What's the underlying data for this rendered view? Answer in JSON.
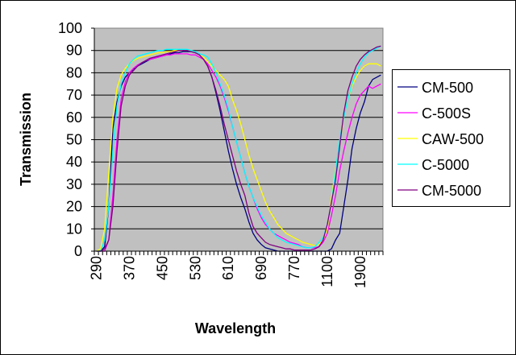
{
  "chart_data": {
    "type": "line",
    "title": "",
    "xlabel": "Wavelength",
    "ylabel": "Transmission",
    "ylim": [
      0,
      100
    ],
    "yticks": [
      0,
      10,
      20,
      30,
      40,
      50,
      60,
      70,
      80,
      90,
      100
    ],
    "grid": true,
    "legend_position": "right",
    "plot_background": "#c0c0c0",
    "categories": [
      290,
      300,
      310,
      320,
      330,
      340,
      350,
      360,
      370,
      380,
      390,
      400,
      410,
      420,
      430,
      440,
      450,
      460,
      470,
      480,
      490,
      500,
      510,
      520,
      530,
      540,
      550,
      560,
      570,
      580,
      590,
      600,
      610,
      620,
      630,
      640,
      650,
      660,
      670,
      680,
      690,
      700,
      710,
      720,
      730,
      740,
      750,
      760,
      770,
      780,
      790,
      800,
      850,
      900,
      950,
      1000,
      1100,
      1200,
      1300,
      1400,
      1500,
      1600,
      1700,
      1800,
      1900,
      2000,
      2100,
      2200,
      2300,
      2400
    ],
    "xtick_labels": [
      "290",
      "370",
      "450",
      "530",
      "610",
      "690",
      "770",
      "1100",
      "1900"
    ],
    "xtick_label_every": 8,
    "series": [
      {
        "name": "CM-500",
        "color": "#000080",
        "values": [
          0,
          0,
          2,
          20,
          55,
          67,
          74,
          78,
          80,
          81.5,
          83,
          84,
          85,
          86,
          86.5,
          87,
          87.5,
          88,
          88.5,
          89,
          89,
          89.5,
          89.5,
          89.5,
          89,
          88,
          86,
          83,
          78,
          71,
          63,
          54,
          45,
          37,
          30,
          24,
          19,
          13,
          8,
          5,
          3,
          1.5,
          1,
          0.5,
          0,
          0,
          0,
          0,
          0,
          0,
          0,
          0,
          0,
          0,
          0,
          0,
          0,
          1,
          5,
          8,
          20,
          32,
          46,
          55,
          62,
          67,
          74,
          77,
          78,
          79
        ]
      },
      {
        "name": "C-500S",
        "color": "#ff00ff",
        "values": [
          0,
          0,
          0,
          5,
          25,
          50,
          68,
          76,
          80,
          82,
          83.5,
          84.5,
          85.5,
          86,
          86.5,
          87,
          87.5,
          88,
          88,
          88.5,
          88.5,
          88.5,
          88.5,
          88,
          88,
          87,
          86,
          84,
          81,
          78,
          74,
          69,
          63,
          56,
          49,
          42,
          35,
          29,
          24,
          19,
          15,
          12,
          10,
          8,
          7,
          6,
          5,
          4,
          3.5,
          3,
          2,
          1.5,
          1.5,
          1.5,
          2,
          4,
          8,
          16,
          25,
          36,
          45,
          53,
          60,
          66,
          70,
          72,
          74,
          73,
          74,
          75
        ]
      },
      {
        "name": "CAW-500",
        "color": "#ffff00",
        "values": [
          0,
          1,
          10,
          35,
          60,
          73,
          79,
          82,
          84,
          85.5,
          86.5,
          87,
          87.5,
          88,
          88.5,
          89,
          89,
          89.5,
          89.5,
          90,
          90,
          90,
          90,
          90,
          89,
          88,
          87,
          85,
          83,
          81,
          79,
          77,
          74,
          68,
          63,
          57,
          50,
          43,
          37,
          32,
          27,
          22,
          18,
          15,
          12,
          10,
          8,
          7,
          6,
          5,
          4,
          3.5,
          3,
          2.5,
          3,
          5,
          10,
          24,
          37,
          48,
          60,
          68,
          74,
          78,
          81,
          83,
          84,
          84,
          84,
          83
        ]
      },
      {
        "name": "C-5000",
        "color": "#00ffff",
        "values": [
          0,
          0,
          5,
          20,
          45,
          65,
          75,
          80,
          84,
          86,
          87.5,
          88,
          88.5,
          89,
          89.5,
          90,
          90,
          90.5,
          90.5,
          90.5,
          90.5,
          90.5,
          90.5,
          90,
          89.5,
          88.5,
          88,
          87,
          84,
          80,
          75,
          70,
          64,
          56,
          49,
          42,
          35,
          29,
          24,
          20,
          16,
          13,
          10,
          8,
          6,
          5,
          4,
          3.5,
          3,
          2.5,
          2,
          1.5,
          1.5,
          2,
          4,
          6,
          12,
          22,
          36,
          50,
          60,
          68,
          75,
          80,
          84,
          87,
          89,
          90,
          91,
          92
        ]
      },
      {
        "name": "CM-5000",
        "color": "#800080",
        "values": [
          0,
          0,
          1,
          5,
          20,
          45,
          65,
          74,
          79,
          81,
          83,
          84.5,
          85.5,
          86.5,
          87,
          87.5,
          88,
          88.5,
          89,
          89.5,
          90,
          90,
          90,
          89.5,
          89,
          88,
          86,
          83,
          78,
          72,
          65,
          57,
          50,
          43,
          36,
          30,
          25,
          17,
          11,
          8,
          6,
          4,
          3,
          2.5,
          2,
          1.5,
          1,
          1,
          0.5,
          0.5,
          0.5,
          0.5,
          0.5,
          1,
          2,
          5,
          12,
          22,
          32,
          47,
          62,
          72,
          78,
          83,
          86,
          88,
          89.5,
          90.5,
          91.5,
          92
        ]
      }
    ]
  }
}
